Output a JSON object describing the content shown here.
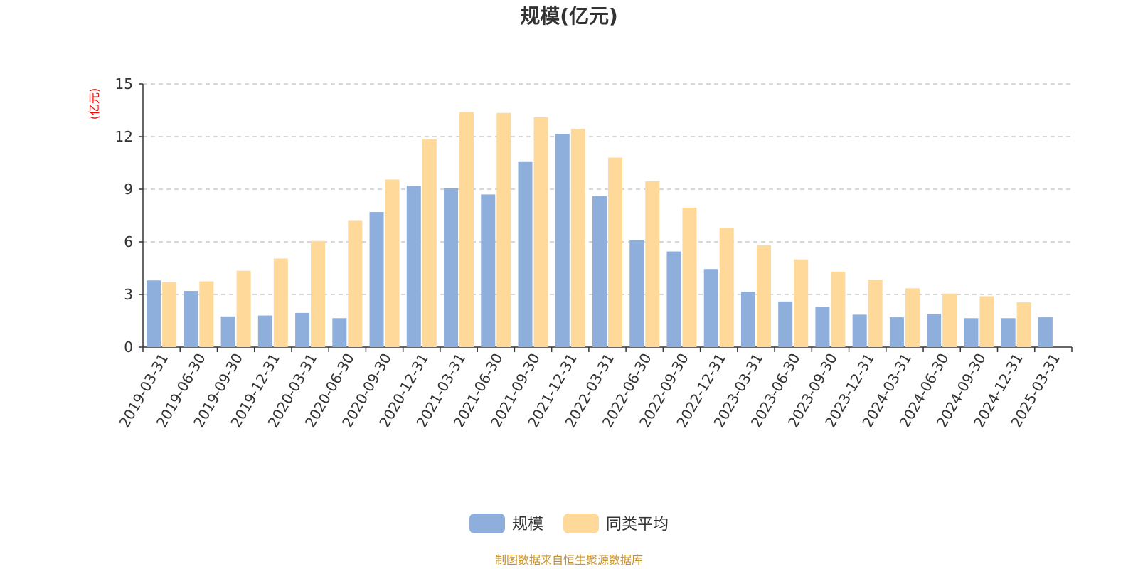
{
  "chart_data": {
    "type": "bar",
    "title": "规模(亿元)",
    "ylabel": "(亿元)",
    "ylim": [
      0,
      15
    ],
    "yticks": [
      0,
      3,
      6,
      9,
      12,
      15
    ],
    "grid": "horizontal dashed",
    "legend_position": "bottom-center",
    "categories": [
      "2019-03-31",
      "2019-06-30",
      "2019-09-30",
      "2019-12-31",
      "2020-03-31",
      "2020-06-30",
      "2020-09-30",
      "2020-12-31",
      "2021-03-31",
      "2021-06-30",
      "2021-09-30",
      "2021-12-31",
      "2022-03-31",
      "2022-06-30",
      "2022-09-30",
      "2022-12-31",
      "2023-03-31",
      "2023-06-30",
      "2023-09-30",
      "2023-12-31",
      "2024-03-31",
      "2024-06-30",
      "2024-09-30",
      "2024-12-31",
      "2025-03-31"
    ],
    "series": [
      {
        "name": "规模",
        "color": "#8eaedb",
        "values": [
          3.8,
          3.2,
          1.75,
          1.8,
          1.95,
          1.65,
          7.7,
          9.2,
          9.05,
          8.7,
          10.55,
          12.15,
          8.6,
          6.1,
          5.45,
          4.45,
          3.15,
          2.6,
          2.3,
          1.85,
          1.7,
          1.9,
          1.65,
          1.65,
          1.7
        ]
      },
      {
        "name": "同类平均",
        "color": "#fed999",
        "values": [
          3.7,
          3.75,
          4.35,
          5.05,
          6.05,
          7.2,
          9.55,
          11.85,
          13.4,
          13.35,
          13.1,
          12.45,
          10.8,
          9.45,
          7.95,
          6.8,
          5.8,
          5.0,
          4.3,
          3.85,
          3.35,
          3.05,
          2.9,
          2.55,
          null
        ]
      }
    ],
    "source_note": "制图数据来自恒生聚源数据库"
  }
}
